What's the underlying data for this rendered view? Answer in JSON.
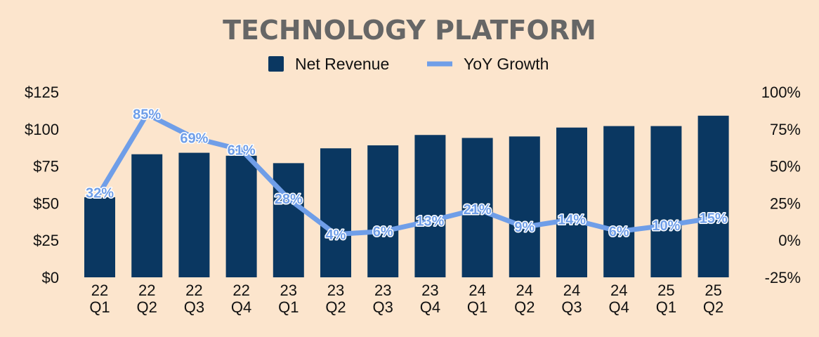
{
  "chart_data": {
    "type": "bar",
    "title": "TECHNOLOGY PLATFORM",
    "categories": [
      [
        "22",
        "Q1"
      ],
      [
        "22",
        "Q2"
      ],
      [
        "22",
        "Q3"
      ],
      [
        "22",
        "Q4"
      ],
      [
        "23",
        "Q1"
      ],
      [
        "23",
        "Q2"
      ],
      [
        "23",
        "Q3"
      ],
      [
        "23",
        "Q4"
      ],
      [
        "24",
        "Q1"
      ],
      [
        "24",
        "Q2"
      ],
      [
        "24",
        "Q3"
      ],
      [
        "24",
        "Q4"
      ],
      [
        "25",
        "Q1"
      ],
      [
        "25",
        "Q2"
      ]
    ],
    "series": [
      {
        "name": "Net Revenue",
        "type": "bar",
        "axis": "left",
        "color": "#0a3761",
        "values": [
          54,
          83,
          84,
          82,
          77,
          87,
          89,
          96,
          94,
          95,
          101,
          102,
          102,
          109
        ]
      },
      {
        "name": "YoY Growth",
        "type": "line",
        "axis": "right",
        "color": "#6f9ee8",
        "values": [
          32,
          85,
          69,
          61,
          28,
          4,
          6,
          13,
          21,
          9,
          14,
          6,
          10,
          15
        ],
        "labels": [
          "32%",
          "85%",
          "69%",
          "61%",
          "28%",
          "4%",
          "6%",
          "13%",
          "21%",
          "9%",
          "14%",
          "6%",
          "10%",
          "15%"
        ]
      }
    ],
    "y_left": {
      "min": 0,
      "max": 125,
      "ticks": [
        0,
        25,
        50,
        75,
        100,
        125
      ],
      "tick_labels": [
        "$0",
        "$25",
        "$50",
        "$75",
        "$100",
        "$125"
      ]
    },
    "y_right": {
      "min": -25,
      "max": 100,
      "ticks": [
        -25,
        0,
        25,
        50,
        75,
        100
      ],
      "tick_labels": [
        "-25%",
        "0%",
        "25%",
        "50%",
        "75%",
        "100%"
      ]
    },
    "legend_position": "top-center",
    "grid": false
  }
}
